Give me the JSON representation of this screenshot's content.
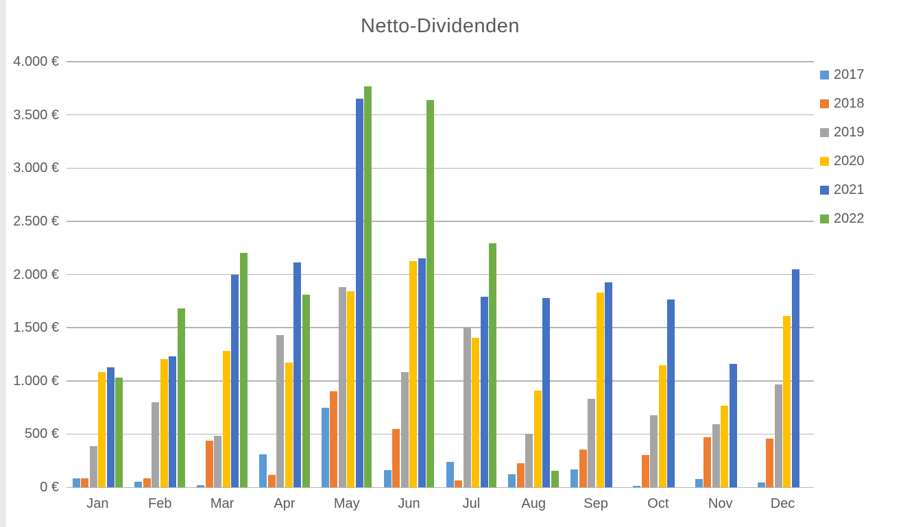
{
  "title": "Netto-Dividenden",
  "chart_data": {
    "type": "bar",
    "title": "Netto-Dividenden",
    "categories": [
      "Jan",
      "Feb",
      "Mar",
      "Apr",
      "May",
      "Jun",
      "Jul",
      "Aug",
      "Sep",
      "Oct",
      "Nov",
      "Dec"
    ],
    "series": [
      {
        "name": "2017",
        "color": "#5B9BD5",
        "values": [
          85,
          50,
          20,
          310,
          745,
          160,
          240,
          120,
          165,
          15,
          75,
          45
        ]
      },
      {
        "name": "2018",
        "color": "#ED7D31",
        "values": [
          85,
          85,
          440,
          115,
          905,
          545,
          65,
          225,
          355,
          305,
          470,
          460
        ]
      },
      {
        "name": "2019",
        "color": "#A5A5A5",
        "values": [
          385,
          800,
          480,
          1430,
          1880,
          1080,
          1500,
          500,
          830,
          675,
          590,
          965
        ]
      },
      {
        "name": "2020",
        "color": "#FFC000",
        "values": [
          1080,
          1205,
          1280,
          1170,
          1845,
          2125,
          1405,
          910,
          1830,
          1145,
          765,
          1610
        ]
      },
      {
        "name": "2021",
        "color": "#4472C4",
        "values": [
          1130,
          1230,
          2000,
          2115,
          3650,
          2150,
          1790,
          1780,
          1925,
          1765,
          1160,
          2050
        ]
      },
      {
        "name": "2022",
        "color": "#70AD47",
        "values": [
          1030,
          1680,
          2200,
          1810,
          3770,
          3640,
          2295,
          155,
          0,
          0,
          0,
          0
        ]
      }
    ],
    "xlabel": "",
    "ylabel": "",
    "ylim": [
      0,
      4000
    ],
    "ytick_step": 500,
    "ytick_labels": [
      "0 €",
      "500 €",
      "1.000 €",
      "1.500 €",
      "2.000 €",
      "2.500 €",
      "3.000 €",
      "3.500 €",
      "4.000 €"
    ],
    "grid": true,
    "legend_position": "right",
    "legend_labels": [
      "2017",
      "2018",
      "2019",
      "2020",
      "2021",
      "2022"
    ]
  },
  "colors": {
    "text": "#595959",
    "gridline": "#B5B5B5",
    "background": "#FFFFFF"
  }
}
